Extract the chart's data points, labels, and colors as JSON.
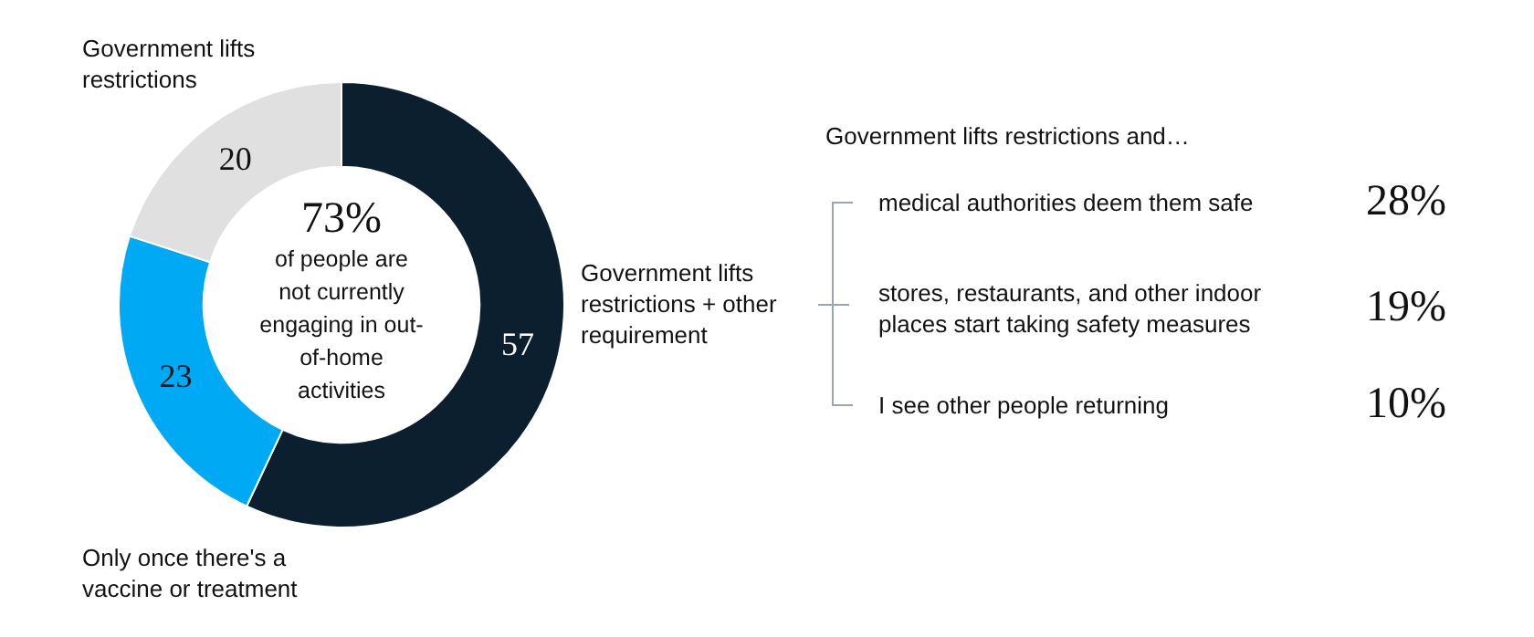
{
  "chart_data": [
    {
      "type": "donut",
      "categories": [
        "Government lifts restrictions + other requirement",
        "Only once there's a vaccine or treatment",
        "Government lifts restrictions"
      ],
      "values": [
        57,
        23,
        20
      ],
      "colors": [
        "#0b1f2e",
        "#00a9f4",
        "#e0e0e0"
      ],
      "data_labels": true,
      "annotations": [
        "73%",
        "of people are not currently engaging in out-of-home activities"
      ]
    },
    {
      "type": "other",
      "title": "Government lifts restrictions and…",
      "categories": [
        "medical authorities deem them safe",
        "stores, restaurants, and other indoor places start taking safety measures",
        "I see other people returning"
      ],
      "values": [
        28,
        19,
        10
      ],
      "value_labels": [
        "28%",
        "19%",
        "10%"
      ]
    }
  ]
}
